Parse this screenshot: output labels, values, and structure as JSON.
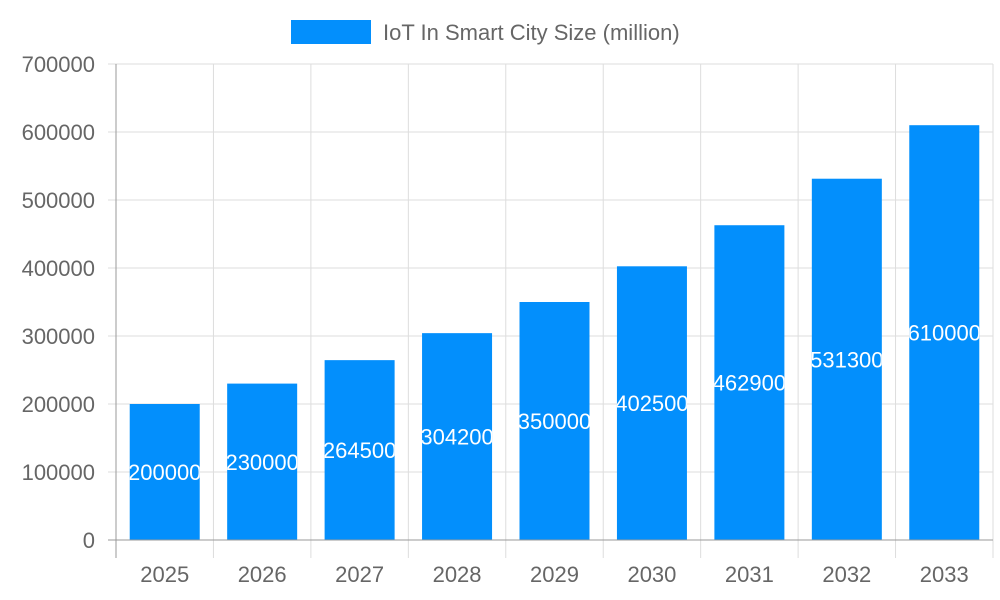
{
  "chart_data": {
    "type": "bar",
    "categories": [
      "2025",
      "2026",
      "2027",
      "2028",
      "2029",
      "2030",
      "2031",
      "2032",
      "2033"
    ],
    "series": [
      {
        "name": "IoT In Smart City Size (million)",
        "values": [
          200000,
          230000,
          264500,
          304200,
          350000,
          402500,
          462900,
          531300,
          610000
        ],
        "color": "#038ffc"
      }
    ],
    "ylim": [
      0,
      700000
    ],
    "yticks": [
      "0",
      "100000",
      "200000",
      "300000",
      "400000",
      "500000",
      "600000",
      "700000"
    ],
    "grid": true,
    "legend": "top",
    "data_labels": true
  }
}
